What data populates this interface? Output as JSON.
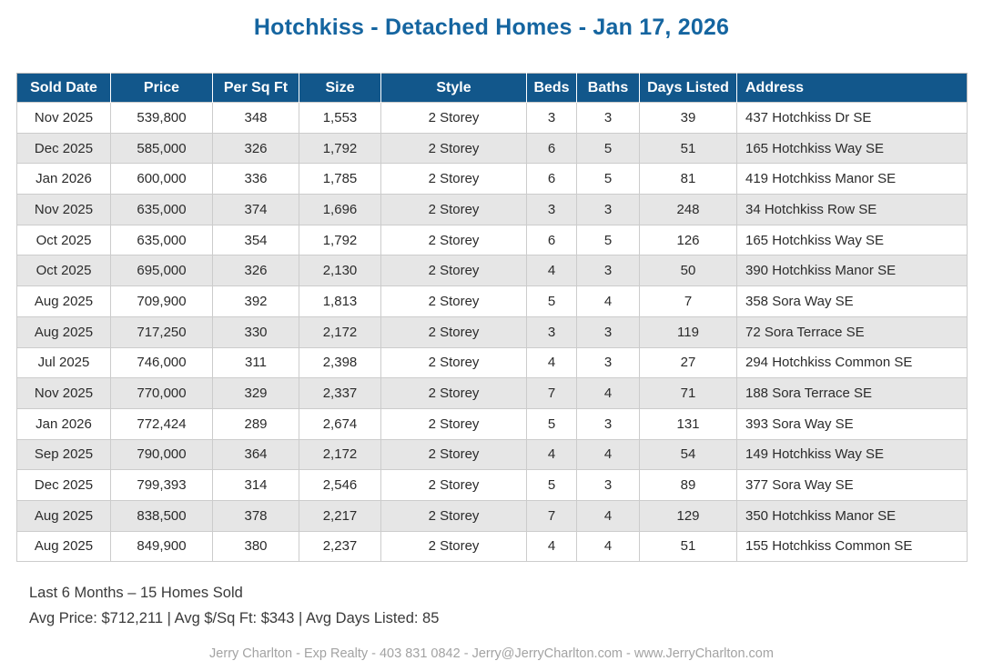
{
  "page": {
    "title": "Hotchkiss - Detached Homes - Jan 17, 2026",
    "footer": "Jerry Charlton - Exp Realty - 403 831 0842 - Jerry@JerryCharlton.com - www.JerryCharlton.com"
  },
  "summary": {
    "line1": "Last 6 Months – 15 Homes Sold",
    "line2": "Avg Price: $712,211 | Avg $/Sq Ft: $343 | Avg Days Listed: 85"
  },
  "table": {
    "columns": [
      "Sold Date",
      "Price",
      "Per Sq Ft",
      "Size",
      "Style",
      "Beds",
      "Baths",
      "Days Listed",
      "Address"
    ],
    "rows": [
      [
        "Nov 2025",
        "539,800",
        "348",
        "1,553",
        "2 Storey",
        "3",
        "3",
        "39",
        "437 Hotchkiss Dr SE"
      ],
      [
        "Dec 2025",
        "585,000",
        "326",
        "1,792",
        "2 Storey",
        "6",
        "5",
        "51",
        "165 Hotchkiss Way SE"
      ],
      [
        "Jan 2026",
        "600,000",
        "336",
        "1,785",
        "2 Storey",
        "6",
        "5",
        "81",
        "419 Hotchkiss Manor SE"
      ],
      [
        "Nov 2025",
        "635,000",
        "374",
        "1,696",
        "2 Storey",
        "3",
        "3",
        "248",
        "34 Hotchkiss Row SE"
      ],
      [
        "Oct 2025",
        "635,000",
        "354",
        "1,792",
        "2 Storey",
        "6",
        "5",
        "126",
        "165 Hotchkiss Way SE"
      ],
      [
        "Oct 2025",
        "695,000",
        "326",
        "2,130",
        "2 Storey",
        "4",
        "3",
        "50",
        "390 Hotchkiss Manor SE"
      ],
      [
        "Aug 2025",
        "709,900",
        "392",
        "1,813",
        "2 Storey",
        "5",
        "4",
        "7",
        "358 Sora Way SE"
      ],
      [
        "Aug 2025",
        "717,250",
        "330",
        "2,172",
        "2 Storey",
        "3",
        "3",
        "119",
        "72 Sora Terrace SE"
      ],
      [
        "Jul 2025",
        "746,000",
        "311",
        "2,398",
        "2 Storey",
        "4",
        "3",
        "27",
        "294 Hotchkiss Common SE"
      ],
      [
        "Nov 2025",
        "770,000",
        "329",
        "2,337",
        "2 Storey",
        "7",
        "4",
        "71",
        "188 Sora Terrace SE"
      ],
      [
        "Jan 2026",
        "772,424",
        "289",
        "2,674",
        "2 Storey",
        "5",
        "3",
        "131",
        "393 Sora Way SE"
      ],
      [
        "Sep 2025",
        "790,000",
        "364",
        "2,172",
        "2 Storey",
        "4",
        "4",
        "54",
        "149 Hotchkiss Way SE"
      ],
      [
        "Dec 2025",
        "799,393",
        "314",
        "2,546",
        "2 Storey",
        "5",
        "3",
        "89",
        "377 Sora Way SE"
      ],
      [
        "Aug 2025",
        "838,500",
        "378",
        "2,217",
        "2 Storey",
        "7",
        "4",
        "129",
        "350 Hotchkiss Manor SE"
      ],
      [
        "Aug 2025",
        "849,900",
        "380",
        "2,237",
        "2 Storey",
        "4",
        "4",
        "51",
        "155 Hotchkiss Common SE"
      ]
    ]
  },
  "colors": {
    "title": "#1565a0",
    "header_bg": "#12578b",
    "header_text": "#ffffff",
    "row_alt_bg": "#e6e6e6",
    "border": "#c9c9c9",
    "summary_text": "#3a3a3a",
    "footer_text": "#a3a3a3"
  }
}
